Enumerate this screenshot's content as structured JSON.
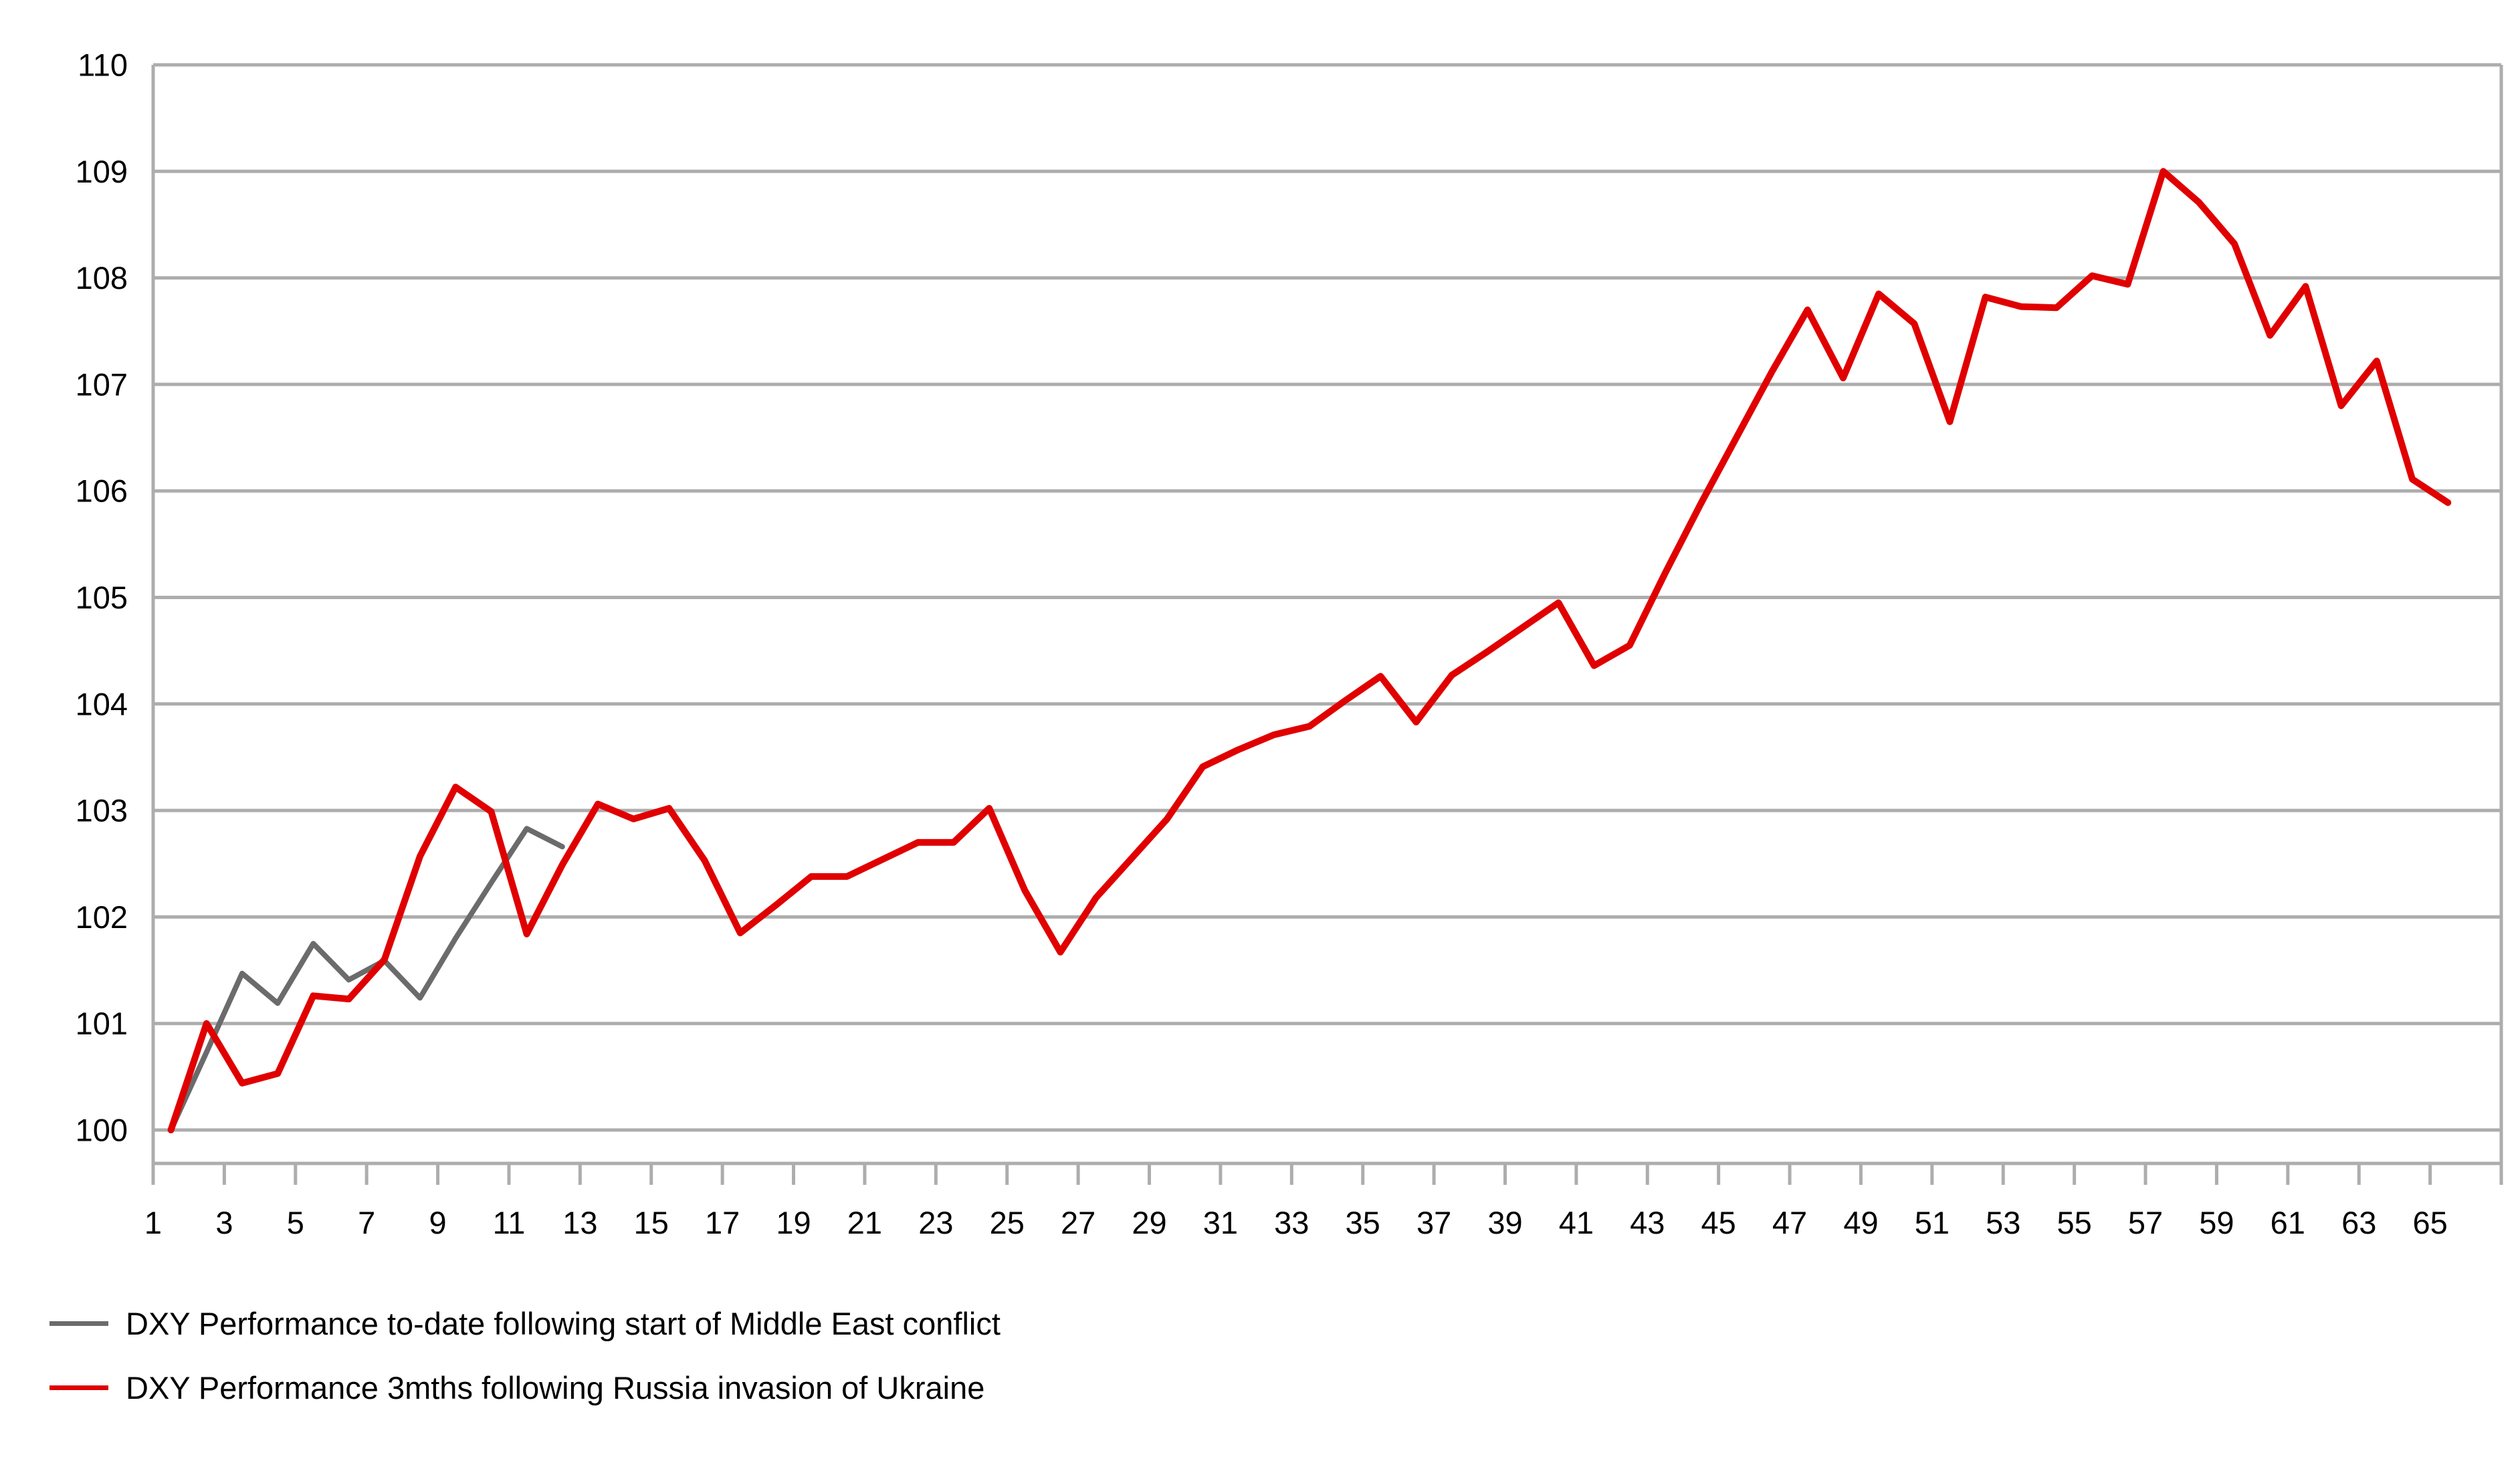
{
  "chart_data": {
    "type": "line",
    "title": "",
    "xlabel": "",
    "ylabel": "",
    "ylim": [
      100,
      110
    ],
    "y_tick_labels": [
      100,
      101,
      102,
      103,
      104,
      105,
      106,
      107,
      108,
      109,
      110
    ],
    "x_tick_labels": [
      1,
      3,
      5,
      7,
      9,
      11,
      13,
      15,
      17,
      19,
      21,
      23,
      25,
      27,
      29,
      31,
      33,
      35,
      37,
      39,
      41,
      43,
      45,
      47,
      49,
      51,
      53,
      55,
      57,
      59,
      61,
      63,
      65
    ],
    "x_categories_count": 65,
    "grid": "horizontal",
    "legend_position": "bottom-left",
    "colors": {
      "grid": "#ADADAD",
      "axis": "#ADADAD",
      "text": "#000000",
      "series_middle_east": "#6B6B6B",
      "series_russia": "#E00000"
    },
    "series": [
      {
        "name": "DXY Performance to-date following start of Middle East conflict",
        "color": "#6B6B6B",
        "values": [
          100.0,
          100.73,
          101.47,
          101.19,
          101.75,
          101.41,
          101.59,
          101.24,
          101.8,
          102.32,
          102.83,
          102.66
        ]
      },
      {
        "name": "DXY Performance 3mths following Russia invasion of Ukraine",
        "color": "#E00000",
        "values": [
          100.0,
          101.0,
          100.44,
          100.53,
          101.26,
          101.23,
          101.6,
          102.57,
          103.22,
          102.99,
          101.84,
          102.49,
          103.06,
          102.92,
          103.02,
          102.53,
          101.85,
          102.11,
          102.38,
          102.38,
          102.54,
          102.7,
          102.7,
          103.02,
          102.25,
          101.67,
          102.18,
          102.55,
          102.92,
          103.41,
          103.57,
          103.71,
          103.79,
          104.03,
          104.26,
          103.83,
          104.27,
          104.49,
          104.72,
          104.95,
          104.36,
          104.55,
          105.23,
          105.88,
          106.5,
          107.12,
          107.7,
          107.06,
          107.85,
          107.57,
          106.65,
          107.82,
          107.73,
          107.72,
          108.02,
          107.94,
          109.0,
          108.71,
          108.32,
          107.46,
          107.92,
          106.8,
          107.22,
          106.11,
          105.89
        ]
      }
    ]
  },
  "legend": {
    "items": [
      {
        "label": "DXY Performance to-date following start of Middle East conflict",
        "color": "#6B6B6B"
      },
      {
        "label": "DXY Performance 3mths following Russia invasion of Ukraine",
        "color": "#E00000"
      }
    ]
  }
}
